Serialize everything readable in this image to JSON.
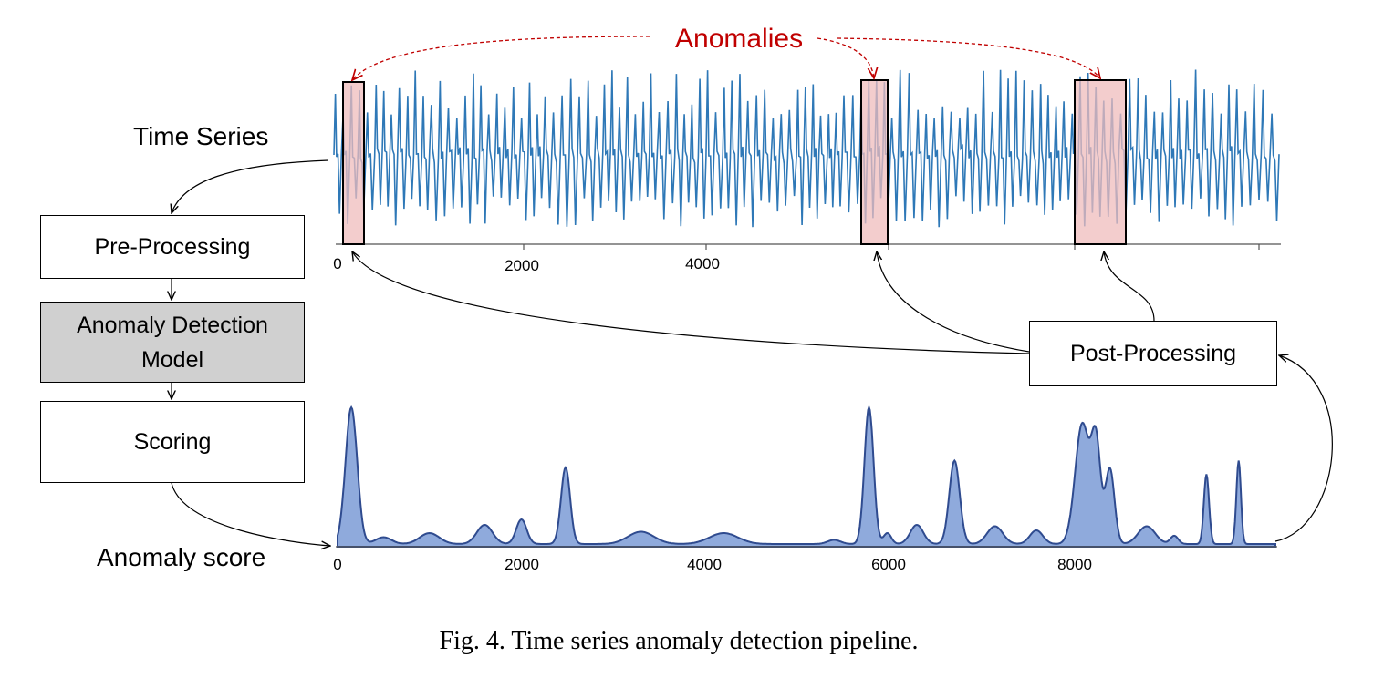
{
  "labels": {
    "anomalies": "Anomalies",
    "time_series": "Time Series",
    "anomaly_score": "Anomaly score"
  },
  "pipeline": {
    "pre_processing": "Pre-Processing",
    "model_line1": "Anomaly Detection",
    "model_line2": "Model",
    "scoring": "Scoring",
    "post_processing": "Post-Processing"
  },
  "colors": {
    "series_line": "#2e78b7",
    "anomaly_fill": "#efbcbc",
    "score_fill": "#8faadc",
    "score_line": "#2f4b8f",
    "anomaly_arrow": "#c00000"
  },
  "chart_data": [
    {
      "type": "line",
      "name": "time-series",
      "x_ticks": [
        "0",
        "2000",
        "4000"
      ],
      "anomaly_regions": [
        [
          0,
          230
        ],
        [
          5750,
          6050
        ],
        [
          8050,
          8600
        ]
      ]
    },
    {
      "type": "area",
      "name": "anomaly-score",
      "x_ticks": [
        "0",
        "2000",
        "4000",
        "6000",
        "8000"
      ],
      "xlim": [
        0,
        10200
      ],
      "peaks": [
        {
          "x": 150,
          "y": 1.0
        },
        {
          "x": 2480,
          "y": 0.56
        },
        {
          "x": 5780,
          "y": 1.0
        },
        {
          "x": 6710,
          "y": 0.61
        },
        {
          "x": 8100,
          "y": 0.88
        },
        {
          "x": 9450,
          "y": 0.51
        },
        {
          "x": 9800,
          "y": 0.61
        }
      ]
    }
  ],
  "caption": "Fig. 4.  Time series anomaly detection pipeline."
}
